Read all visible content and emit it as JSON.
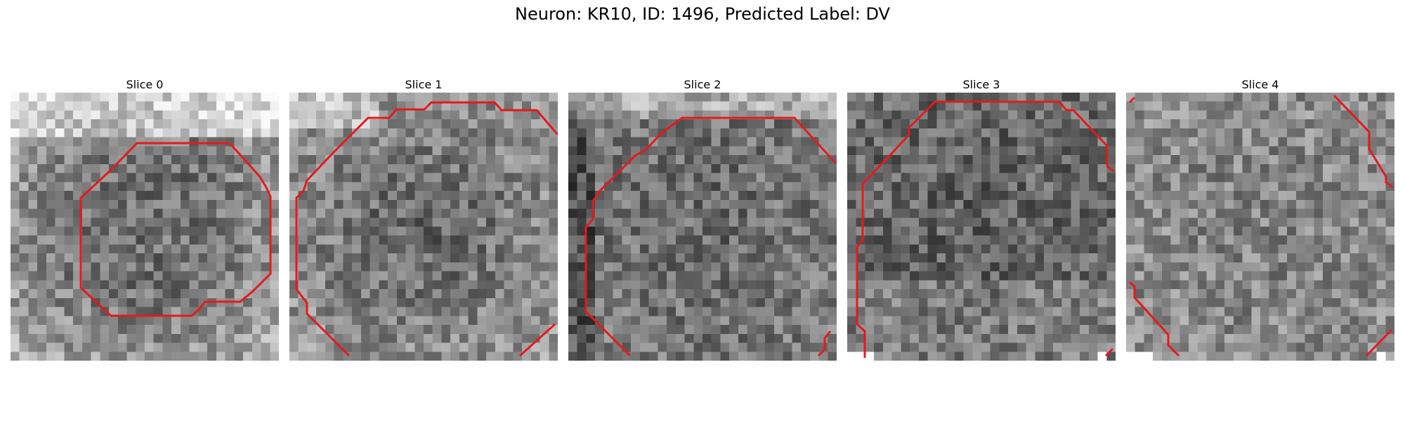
{
  "figure": {
    "title": "Neuron: KR10, ID: 1496, Predicted Label: DV"
  },
  "colors": {
    "contour": "#e41a1c"
  },
  "slices": [
    {
      "label": "Slice 0",
      "pattern": "bright-edges"
    },
    {
      "label": "Slice 1",
      "pattern": "dark-center"
    },
    {
      "label": "Slice 2",
      "pattern": "dark-left"
    },
    {
      "label": "Slice 3",
      "pattern": "dark-top"
    },
    {
      "label": "Slice 4",
      "pattern": "uniform"
    }
  ]
}
